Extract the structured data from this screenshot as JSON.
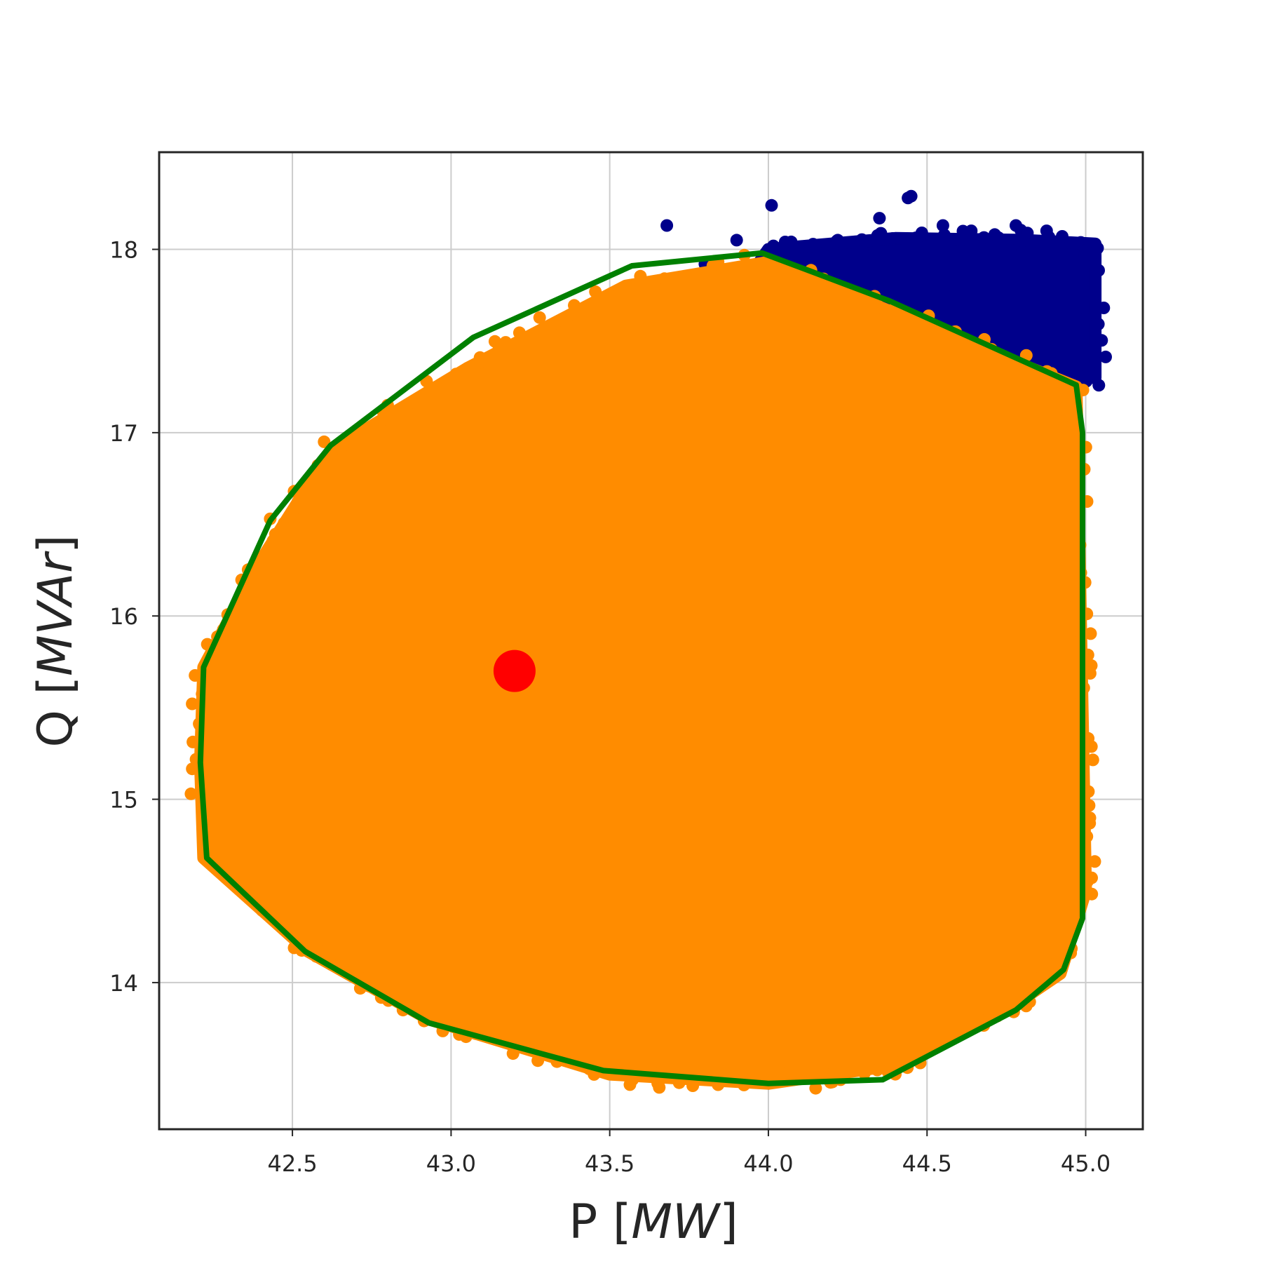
{
  "chart_data": {
    "type": "scatter",
    "title": "",
    "xlabel": "P",
    "xlabel_unit": "MW",
    "ylabel": "Q",
    "ylabel_unit": "MVAr",
    "xlim": [
      42.08,
      45.18
    ],
    "ylim": [
      13.2,
      18.53
    ],
    "xticks": [
      42.5,
      43.0,
      43.5,
      44.0,
      44.5,
      45.0
    ],
    "xtick_labels": [
      "42.5",
      "43.0",
      "43.5",
      "44.0",
      "44.5",
      "45.0"
    ],
    "yticks": [
      14,
      15,
      16,
      17,
      18
    ],
    "ytick_labels": [
      "14",
      "15",
      "16",
      "17",
      "18"
    ],
    "grid": true,
    "legend": "none",
    "colors": {
      "infeasible": "#00008b",
      "feasible": "#ff8c00",
      "boundary": "#008000",
      "operating_point": "#ff0000"
    },
    "series": [
      {
        "kind": "scatter-cloud",
        "color_key": "infeasible",
        "region": [
          [
            43.9,
            17.75
          ],
          [
            44.0,
            18.0
          ],
          [
            44.4,
            18.06
          ],
          [
            44.8,
            18.05
          ],
          [
            45.03,
            18.03
          ],
          [
            45.03,
            17.3
          ],
          [
            44.8,
            17.32
          ],
          [
            44.4,
            17.5
          ],
          [
            44.0,
            17.85
          ]
        ],
        "outliers": [
          [
            43.68,
            18.13
          ],
          [
            44.01,
            18.24
          ],
          [
            44.44,
            18.28
          ],
          [
            44.45,
            18.29
          ],
          [
            44.35,
            18.17
          ],
          [
            44.78,
            18.13
          ],
          [
            44.55,
            18.13
          ],
          [
            43.9,
            18.05
          ],
          [
            43.8,
            17.92
          ]
        ]
      },
      {
        "kind": "scatter-cloud",
        "color_key": "feasible",
        "region": [
          [
            42.22,
            15.72
          ],
          [
            42.4,
            16.3
          ],
          [
            42.62,
            16.9
          ],
          [
            43.05,
            17.35
          ],
          [
            43.55,
            17.8
          ],
          [
            44.0,
            17.93
          ],
          [
            44.4,
            17.65
          ],
          [
            44.97,
            17.25
          ],
          [
            45.0,
            14.5
          ],
          [
            44.92,
            14.05
          ],
          [
            44.75,
            13.85
          ],
          [
            44.4,
            13.55
          ],
          [
            44.0,
            13.45
          ],
          [
            43.5,
            13.5
          ],
          [
            42.93,
            13.8
          ],
          [
            42.55,
            14.17
          ],
          [
            42.22,
            14.68
          ],
          [
            42.21,
            15.2
          ]
        ],
        "outliers": [
          [
            42.43,
            16.53
          ],
          [
            42.6,
            16.95
          ],
          [
            42.8,
            17.15
          ],
          [
            43.3,
            17.55
          ],
          [
            43.65,
            17.75
          ],
          [
            44.13,
            17.83
          ],
          [
            44.4,
            13.5
          ],
          [
            43.73,
            13.5
          ],
          [
            42.35,
            14.6
          ],
          [
            43.88,
            13.6
          ],
          [
            44.9,
            14.1
          ]
        ]
      },
      {
        "kind": "line",
        "color_key": "boundary",
        "x": [
          42.22,
          42.43,
          42.62,
          43.07,
          43.57,
          43.98,
          44.38,
          44.97,
          44.99,
          44.99,
          44.93,
          44.78,
          44.36,
          44.0,
          43.48,
          42.93,
          42.54,
          42.23,
          42.21,
          42.22
        ],
        "y": [
          15.72,
          16.52,
          16.93,
          17.52,
          17.91,
          17.98,
          17.72,
          17.26,
          17.0,
          14.35,
          14.07,
          13.85,
          13.47,
          13.45,
          13.52,
          13.78,
          14.17,
          14.68,
          15.2,
          15.72
        ]
      },
      {
        "kind": "point",
        "color_key": "operating_point",
        "x": [
          43.2
        ],
        "y": [
          15.7
        ]
      }
    ]
  }
}
